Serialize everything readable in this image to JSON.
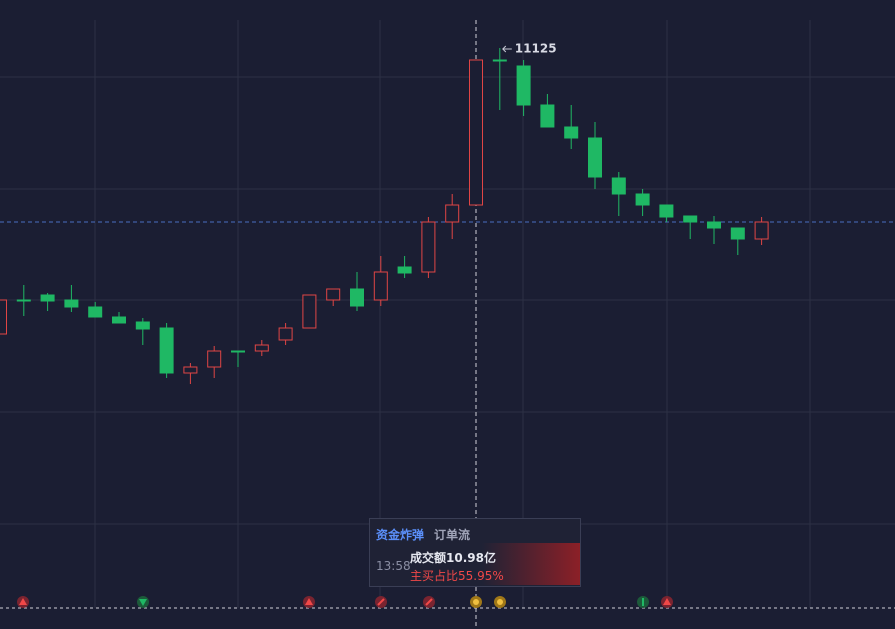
{
  "chart_data": {
    "type": "candlestick",
    "categories": [
      null,
      null,
      null,
      null,
      null,
      null,
      null,
      null,
      null,
      null,
      null,
      null,
      null,
      null,
      null,
      null,
      null,
      null,
      null,
      null,
      null,
      null,
      null,
      null,
      null,
      null,
      null,
      null,
      null,
      null,
      null,
      null,
      null
    ],
    "open": [
      10839,
      10873,
      10878,
      10873,
      10866,
      10856,
      10851,
      10845,
      10800,
      10806,
      10822,
      10822,
      10833,
      10845,
      10873,
      10884,
      10873,
      10906,
      10901,
      10951,
      10968,
      11113,
      11107,
      11068,
      11046,
      11035,
      10995,
      10979,
      10968,
      10957,
      10951,
      10945,
      10934
    ],
    "high": [
      10873,
      10888,
      10880,
      10888,
      10871,
      10861,
      10855,
      10850,
      10810,
      10827,
      10822,
      10833,
      10850,
      10878,
      10884,
      10901,
      10917,
      10917,
      10956,
      10979,
      11113,
      11125,
      11113,
      11079,
      11068,
      11051,
      11001,
      10984,
      10968,
      10957,
      10957,
      10945,
      10956
    ],
    "low": [
      10839,
      10857,
      10862,
      10861,
      10856,
      10850,
      10828,
      10795,
      10789,
      10795,
      10806,
      10817,
      10828,
      10845,
      10867,
      10862,
      10867,
      10895,
      10895,
      10934,
      10968,
      11063,
      11057,
      11046,
      11024,
      10984,
      10957,
      10957,
      10951,
      10934,
      10929,
      10918,
      10928
    ],
    "close": [
      10873,
      10873,
      10872,
      10866,
      10856,
      10850,
      10844,
      10800,
      10806,
      10822,
      10822,
      10828,
      10845,
      10878,
      10884,
      10867,
      10901,
      10900,
      10951,
      10968,
      11113,
      11112,
      11068,
      11046,
      11035,
      10996,
      10979,
      10968,
      10956,
      10951,
      10945,
      10934,
      10951
    ],
    "up_color": "#e04545",
    "down_color": "#1fb864",
    "ylim": [
      10565,
      11153
    ],
    "last_price": 10951,
    "annotation_index": 21
  },
  "tooltip": {
    "tabs": [
      "资金炸弹",
      "订单流"
    ],
    "time": "13:58",
    "amount": "成交额10.98亿",
    "ratio": "主买占比55.95%"
  }
}
